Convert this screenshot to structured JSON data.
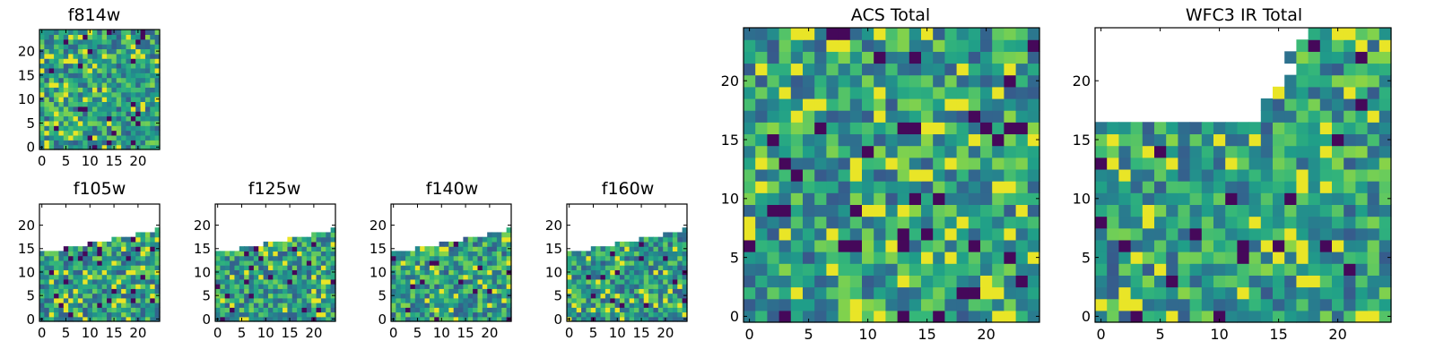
{
  "chart_data": [
    {
      "id": "f814w",
      "type": "heatmap",
      "title": "f814w",
      "size": 25,
      "mask": "none",
      "colormap": "viridis",
      "xticks": [
        "0",
        "5",
        "10",
        "15",
        "20"
      ],
      "yticks": [
        "0",
        "5",
        "10",
        "15",
        "20"
      ],
      "seed": 11
    },
    {
      "id": "f105w",
      "type": "heatmap",
      "title": "f105w",
      "size": 25,
      "mask": "ir",
      "colormap": "viridis",
      "xticks": [
        "0",
        "5",
        "10",
        "15",
        "20"
      ],
      "yticks": [
        "0",
        "5",
        "10",
        "15",
        "20"
      ],
      "seed": 23
    },
    {
      "id": "f125w",
      "type": "heatmap",
      "title": "f125w",
      "size": 25,
      "mask": "ir",
      "colormap": "viridis",
      "xticks": [
        "0",
        "5",
        "10",
        "15",
        "20"
      ],
      "yticks": [
        "0",
        "5",
        "10",
        "15",
        "20"
      ],
      "seed": 37
    },
    {
      "id": "f140w",
      "type": "heatmap",
      "title": "f140w",
      "size": 25,
      "mask": "ir",
      "colormap": "viridis",
      "xticks": [
        "0",
        "5",
        "10",
        "15",
        "20"
      ],
      "yticks": [
        "0",
        "5",
        "10",
        "15",
        "20"
      ],
      "seed": 41
    },
    {
      "id": "f160w",
      "type": "heatmap",
      "title": "f160w",
      "size": 25,
      "mask": "ir",
      "colormap": "viridis",
      "xticks": [
        "0",
        "5",
        "10",
        "15",
        "20"
      ],
      "yticks": [
        "0",
        "5",
        "10",
        "15",
        "20"
      ],
      "seed": 53
    },
    {
      "id": "acs",
      "type": "heatmap",
      "title": "ACS Total",
      "size": 25,
      "mask": "none",
      "colormap": "viridis",
      "xticks": [
        "0",
        "5",
        "10",
        "15",
        "20"
      ],
      "yticks": [
        "0",
        "5",
        "10",
        "15",
        "20"
      ],
      "seed": 67
    },
    {
      "id": "wfc3",
      "type": "heatmap",
      "title": "WFC3 IR Total",
      "size": 25,
      "mask": "wfc3",
      "colormap": "viridis",
      "xticks": [
        "0",
        "5",
        "10",
        "15",
        "20"
      ],
      "yticks": [
        "0",
        "5",
        "10",
        "15",
        "20"
      ],
      "seed": 79
    }
  ]
}
